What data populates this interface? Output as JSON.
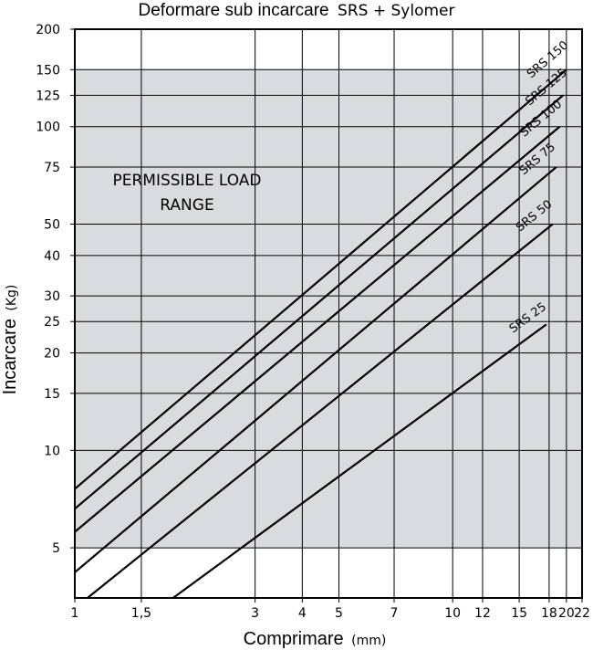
{
  "chart_data": {
    "type": "line",
    "title_main": "Deformare sub incarcare",
    "title_suffix": "SRS + Sylomer",
    "xlabel_main": "Comprimare",
    "xlabel_unit": "(mm)",
    "ylabel_main": "Incarcare",
    "ylabel_unit": "(Kg)",
    "x_scale": "log",
    "y_scale": "log",
    "xlim": [
      1,
      22
    ],
    "ylim": [
      3.5,
      200
    ],
    "x_ticks": [
      {
        "value": 1,
        "label": "1"
      },
      {
        "value": 1.5,
        "label": "1,5"
      },
      {
        "value": 3,
        "label": "3"
      },
      {
        "value": 4,
        "label": "4"
      },
      {
        "value": 5,
        "label": "5"
      },
      {
        "value": 7,
        "label": "7"
      },
      {
        "value": 10,
        "label": "10"
      },
      {
        "value": 12,
        "label": "12"
      },
      {
        "value": 15,
        "label": "15"
      },
      {
        "value": 18,
        "label": "18"
      },
      {
        "value": 20,
        "label": "20"
      },
      {
        "value": 22,
        "label": "22"
      }
    ],
    "y_ticks": [
      {
        "value": 5,
        "label": "5"
      },
      {
        "value": 10,
        "label": "10"
      },
      {
        "value": 15,
        "label": "15"
      },
      {
        "value": 20,
        "label": "20"
      },
      {
        "value": 25,
        "label": "25"
      },
      {
        "value": 30,
        "label": "30"
      },
      {
        "value": 40,
        "label": "40"
      },
      {
        "value": 50,
        "label": "50"
      },
      {
        "value": 75,
        "label": "75"
      },
      {
        "value": 100,
        "label": "100"
      },
      {
        "value": 125,
        "label": "125"
      },
      {
        "value": 150,
        "label": "150"
      },
      {
        "value": 200,
        "label": "200"
      }
    ],
    "grid": true,
    "permissible_range": {
      "label_lines": [
        "PERMISSIBLE LOAD",
        "RANGE"
      ],
      "y_min": 5,
      "y_max": 150,
      "color": "#d9dcde"
    },
    "series": [
      {
        "name": "SRS 25",
        "x": [
          1.82,
          17.7
        ],
        "y": [
          3.5,
          24.5
        ]
      },
      {
        "name": "SRS 50",
        "x": [
          1.08,
          18.4
        ],
        "y": [
          3.5,
          50
        ]
      },
      {
        "name": "SRS 75",
        "x": [
          1.0,
          18.8
        ],
        "y": [
          4.2,
          75
        ]
      },
      {
        "name": "SRS 100",
        "x": [
          1.0,
          19.2
        ],
        "y": [
          5.6,
          100
        ]
      },
      {
        "name": "SRS 125",
        "x": [
          1.0,
          19.6
        ],
        "y": [
          6.6,
          125
        ]
      },
      {
        "name": "SRS 150",
        "x": [
          1.0,
          20.0
        ],
        "y": [
          7.6,
          150
        ]
      }
    ]
  }
}
